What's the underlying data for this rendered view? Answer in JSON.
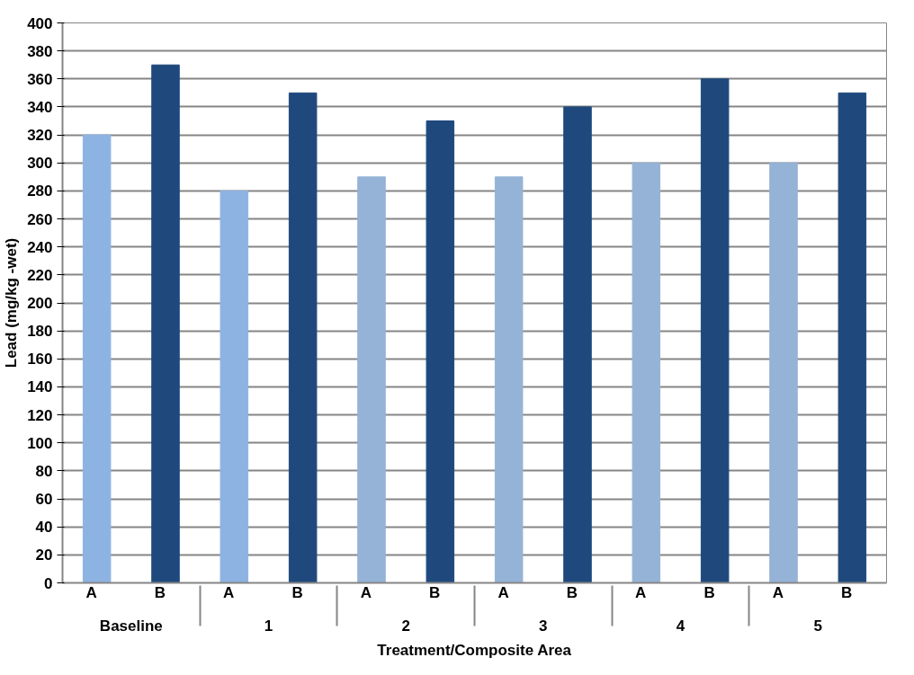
{
  "chart_data": {
    "type": "bar",
    "xlabel": "Treatment/Composite Area",
    "ylabel": "Lead (mg/kg -wet)",
    "categories": [
      "A",
      "B",
      "A",
      "B",
      "A",
      "B",
      "A",
      "B",
      "A",
      "B",
      "A",
      "B"
    ],
    "annotations": [
      "Baseline",
      "1",
      "2",
      "3",
      "4",
      "5"
    ],
    "values": [
      320,
      370,
      280,
      350,
      290,
      330,
      290,
      340,
      300,
      360,
      300,
      350
    ],
    "colors": [
      "#8db3e2",
      "#1f497d",
      "#8db3e2",
      "#1f497d",
      "#95b3d7",
      "#1f497d",
      "#95b3d7",
      "#1f497d",
      "#95b3d7",
      "#1f497d",
      "#95b3d7",
      "#1f497d"
    ],
    "ylim": [
      0,
      400
    ],
    "yticks": [
      0,
      20,
      40,
      60,
      80,
      100,
      120,
      140,
      160,
      180,
      200,
      220,
      240,
      260,
      280,
      300,
      320,
      340,
      360,
      380,
      400
    ],
    "grid": "y"
  }
}
